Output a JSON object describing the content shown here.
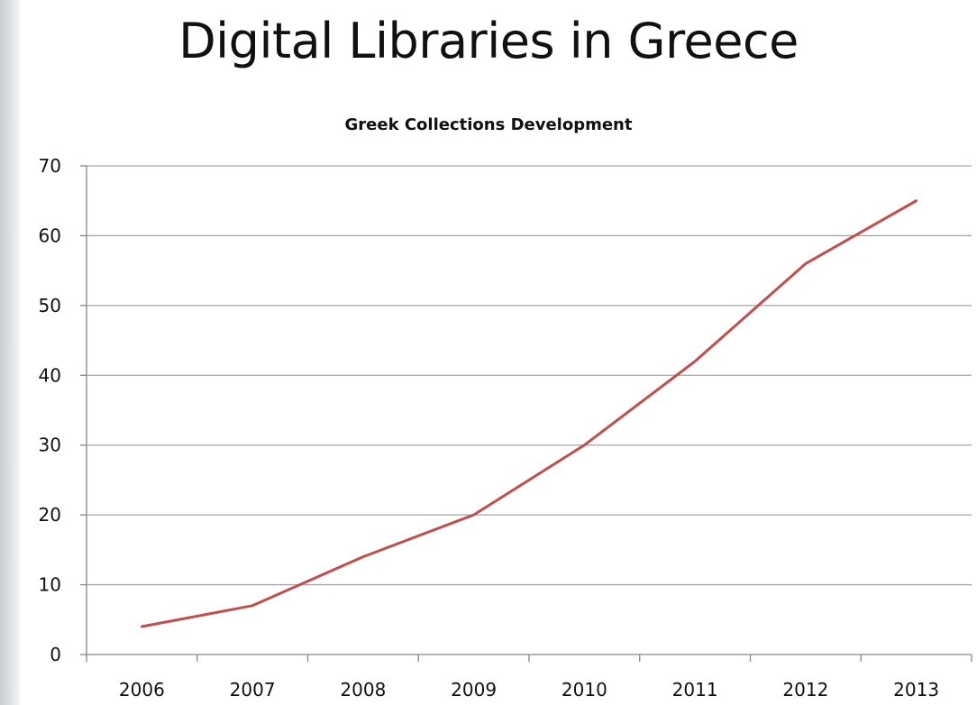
{
  "slide": {
    "title": "Digital Libraries in Greece"
  },
  "chart_data": {
    "type": "line",
    "title": "Greek Collections Development",
    "xlabel": "",
    "ylabel": "",
    "categories": [
      "2006",
      "2007",
      "2008",
      "2009",
      "2010",
      "2011",
      "2012",
      "2013"
    ],
    "series": [
      {
        "values": [
          4,
          7,
          14,
          20,
          30,
          42,
          56,
          65
        ],
        "color": "#c0504d"
      }
    ],
    "ylim": [
      0,
      70
    ],
    "yticks": [
      0,
      10,
      20,
      30,
      40,
      50,
      60,
      70
    ],
    "grid": true,
    "legend": "none"
  },
  "colors": {
    "gridline": "#a6a6a6",
    "axis": "#868686",
    "line": "#c0504d"
  }
}
